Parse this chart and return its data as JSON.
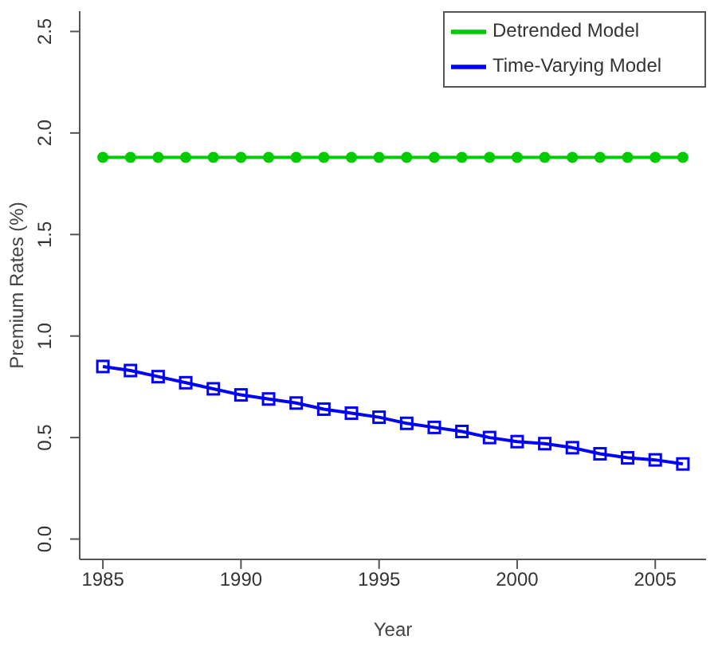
{
  "chart_data": {
    "type": "line",
    "xlabel": "Year",
    "ylabel": "Premium Rates (%)",
    "x": [
      1985,
      1986,
      1987,
      1988,
      1989,
      1990,
      1991,
      1992,
      1993,
      1994,
      1995,
      1996,
      1997,
      1998,
      1999,
      2000,
      2001,
      2002,
      2003,
      2004,
      2005,
      2006
    ],
    "series": [
      {
        "name": "Detrended Model",
        "color": "#00cc00",
        "marker": "circle",
        "values": [
          1.88,
          1.88,
          1.88,
          1.88,
          1.88,
          1.88,
          1.88,
          1.88,
          1.88,
          1.88,
          1.88,
          1.88,
          1.88,
          1.88,
          1.88,
          1.88,
          1.88,
          1.88,
          1.88,
          1.88,
          1.88,
          1.88
        ]
      },
      {
        "name": "Time-Varying Model",
        "color": "#0000ff",
        "marker": "square",
        "values": [
          0.85,
          0.83,
          0.8,
          0.77,
          0.74,
          0.71,
          0.69,
          0.67,
          0.64,
          0.62,
          0.6,
          0.57,
          0.55,
          0.53,
          0.5,
          0.48,
          0.47,
          0.45,
          0.42,
          0.4,
          0.39,
          0.37
        ]
      }
    ],
    "xlim": [
      1984.16,
      2006.84
    ],
    "xticks": [
      1985,
      1990,
      1995,
      2000,
      2005
    ],
    "ylim": [
      -0.1,
      2.6
    ],
    "yticks": [
      {
        "value": 0,
        "label": "0.0"
      },
      0.5,
      {
        "value": 1,
        "label": "1.0"
      },
      1.5,
      {
        "value": 2,
        "label": "2.0"
      },
      2.5
    ],
    "legend": "top right",
    "grid": false
  }
}
